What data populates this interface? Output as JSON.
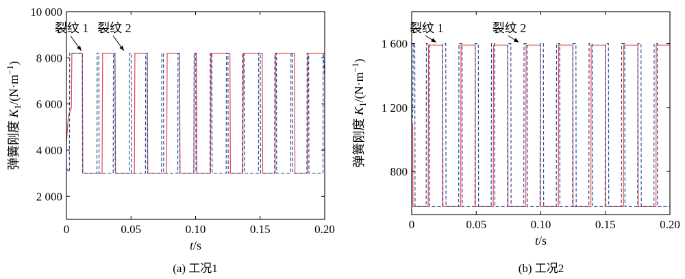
{
  "chart_data": [
    {
      "type": "line",
      "caption": "(a) 工况1",
      "xlabel_italic": "t",
      "xlabel_unit": "/s",
      "ylabel_prefix": "弹簧刚度 ",
      "ylabel_symbol": "K",
      "ylabel_sub": "1",
      "ylabel_unit": "/(N·m",
      "ylabel_exp": "−1",
      "ylabel_close": ")",
      "xlim": [
        0,
        0.2
      ],
      "ylim": [
        1000,
        10000
      ],
      "xticks": [
        0,
        0.05,
        0.1,
        0.15,
        0.2
      ],
      "xtick_labels": [
        "0",
        "0.05",
        "0.10",
        "0.15",
        "0.20"
      ],
      "yticks": [
        2000,
        4000,
        6000,
        8000,
        10000
      ],
      "ytick_labels": [
        "2 000",
        "4 000",
        "6 000",
        "8 000",
        "10 000"
      ],
      "annotations": [
        {
          "text": "裂纹 1",
          "x": 0.0115,
          "y": 8250
        },
        {
          "text": "裂纹 2",
          "x": 0.0445,
          "y": 8250
        }
      ],
      "series": [
        {
          "style": "solid",
          "color": "#e8454a",
          "x": [
            0,
            0.0015,
            0.0038,
            0.0042,
            0.0123,
            0.0127,
            0.0276,
            0.028,
            0.0376,
            0.038,
            0.0526,
            0.053,
            0.0626,
            0.063,
            0.0776,
            0.078,
            0.0876,
            0.088,
            0.0986,
            0.099,
            0.1006,
            0.101,
            0.1116,
            0.112,
            0.1266,
            0.127,
            0.1366,
            0.137,
            0.1516,
            0.152,
            0.1616,
            0.162,
            0.1766,
            0.177,
            0.1866,
            0.187,
            0.2
          ],
          "y": [
            4300,
            5500,
            5800,
            8200,
            8200,
            3000,
            3000,
            8200,
            8200,
            3000,
            3000,
            8200,
            8200,
            3000,
            3000,
            8200,
            8200,
            3000,
            3000,
            8200,
            8200,
            3000,
            3000,
            8200,
            8200,
            3000,
            3000,
            8200,
            8200,
            3000,
            3000,
            8200,
            8200,
            3000,
            3000,
            8200,
            8200
          ]
        },
        {
          "style": "dashed",
          "color": "#2b4c9b",
          "x": [
            0,
            0.0015,
            0.0023,
            0.0025,
            0.0123,
            0.0125,
            0.0236,
            0.0238,
            0.0251,
            0.0253,
            0.0362,
            0.0364,
            0.0376,
            0.0378,
            0.0487,
            0.0489,
            0.0501,
            0.0503,
            0.0612,
            0.0614,
            0.0626,
            0.0628,
            0.0737,
            0.0739,
            0.0751,
            0.0753,
            0.0862,
            0.0864,
            0.0876,
            0.0878,
            0.0987,
            0.0989,
            0.1001,
            0.1003,
            0.1112,
            0.1114,
            0.1126,
            0.1128,
            0.1237,
            0.1239,
            0.1251,
            0.1253,
            0.1362,
            0.1364,
            0.1376,
            0.1378,
            0.1487,
            0.1489,
            0.1501,
            0.1503,
            0.1612,
            0.1614,
            0.1626,
            0.1628,
            0.1737,
            0.1739,
            0.1751,
            0.1753,
            0.1862,
            0.1864,
            0.1876,
            0.1878,
            0.1987,
            0.1989,
            0.2
          ],
          "y": [
            3200,
            3100,
            3050,
            8200,
            8200,
            3000,
            3000,
            8200,
            8200,
            3000,
            3000,
            8200,
            8200,
            3000,
            3000,
            8200,
            8200,
            3000,
            3000,
            8200,
            8200,
            3000,
            3000,
            8200,
            8200,
            3000,
            3000,
            8200,
            8200,
            3000,
            3000,
            8200,
            8200,
            3000,
            3000,
            8200,
            8200,
            3000,
            3000,
            8200,
            8200,
            3000,
            3000,
            8200,
            8200,
            3000,
            3000,
            8200,
            8200,
            3000,
            3000,
            8200,
            8200,
            3000,
            3000,
            8200,
            8200,
            3000,
            3000,
            8200,
            8200,
            3000,
            3000,
            8200,
            7200
          ]
        }
      ]
    },
    {
      "type": "line",
      "caption": "(b) 工况2",
      "xlabel_italic": "t",
      "xlabel_unit": "/s",
      "ylabel_prefix": "弹簧刚度 ",
      "ylabel_symbol": "K",
      "ylabel_sub": "1",
      "ylabel_unit": "/(N·m",
      "ylabel_exp": "−1",
      "ylabel_close": ")",
      "xlim": [
        0,
        0.2
      ],
      "ylim": [
        530,
        1800
      ],
      "xticks": [
        0,
        0.05,
        0.1,
        0.15,
        0.2
      ],
      "xtick_labels": [
        "0",
        "0.05",
        "0.10",
        "0.15",
        "0.20"
      ],
      "yticks": [
        800,
        1200,
        1600
      ],
      "ytick_labels": [
        "800",
        "1 200",
        "1 600"
      ],
      "annotations": [
        {
          "text": "裂纹 1",
          "x": 0.019,
          "y": 1600
        },
        {
          "text": "裂纹 2",
          "x": 0.083,
          "y": 1600
        }
      ],
      "series": [
        {
          "style": "solid",
          "color": "#e8454a",
          "x": [
            0,
            0.0008,
            0.001,
            0.0128,
            0.013,
            0.024,
            0.0242,
            0.038,
            0.0382,
            0.0492,
            0.0494,
            0.0632,
            0.0634,
            0.0744,
            0.0746,
            0.0884,
            0.0886,
            0.0996,
            0.0998,
            0.1136,
            0.1138,
            0.1248,
            0.125,
            0.1388,
            0.139,
            0.15,
            0.1502,
            0.164,
            0.1642,
            0.1752,
            0.1754,
            0.1892,
            0.1894,
            0.2
          ],
          "y": [
            1100,
            1100,
            580,
            580,
            1590,
            1590,
            580,
            580,
            1590,
            1590,
            580,
            580,
            1590,
            1590,
            580,
            580,
            1590,
            1590,
            580,
            580,
            1590,
            1590,
            580,
            580,
            1590,
            1590,
            580,
            580,
            1590,
            1590,
            580,
            580,
            1590,
            1590
          ]
        },
        {
          "style": "dashed",
          "color": "#2b4c9b",
          "x": [
            0,
            0.0008,
            0.0012,
            0.0024,
            0.0026,
            0.0112,
            0.0114,
            0.0138,
            0.014,
            0.0238,
            0.024,
            0.0264,
            0.0266,
            0.0364,
            0.0366,
            0.039,
            0.0392,
            0.049,
            0.0492,
            0.0516,
            0.0518,
            0.0616,
            0.0618,
            0.0642,
            0.0644,
            0.0742,
            0.0744,
            0.0768,
            0.077,
            0.0868,
            0.087,
            0.0894,
            0.0896,
            0.0994,
            0.0996,
            0.102,
            0.1022,
            0.112,
            0.1122,
            0.1146,
            0.1148,
            0.1246,
            0.1248,
            0.1272,
            0.1274,
            0.1372,
            0.1374,
            0.1398,
            0.14,
            0.1498,
            0.15,
            0.1524,
            0.1526,
            0.1624,
            0.1626,
            0.165,
            0.1652,
            0.175,
            0.1752,
            0.1776,
            0.1778,
            0.1876,
            0.1878,
            0.1902,
            0.1904,
            0.2
          ],
          "y": [
            1100,
            1150,
            1600,
            1600,
            580,
            580,
            1600,
            1600,
            580,
            580,
            1600,
            1600,
            580,
            580,
            1600,
            1600,
            580,
            580,
            1600,
            1600,
            580,
            580,
            1600,
            1600,
            580,
            580,
            1600,
            1600,
            580,
            580,
            1600,
            1600,
            580,
            580,
            1600,
            1600,
            580,
            580,
            1600,
            1600,
            580,
            580,
            1600,
            1600,
            580,
            580,
            1600,
            1600,
            580,
            580,
            1600,
            1600,
            580,
            580,
            1600,
            1600,
            580,
            580,
            1600,
            1600,
            580,
            580,
            1600,
            1600,
            580,
            580
          ]
        }
      ]
    }
  ]
}
